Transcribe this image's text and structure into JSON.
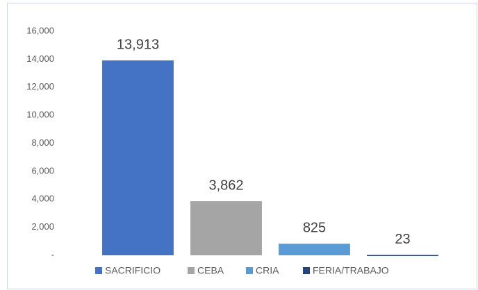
{
  "chart_data": {
    "type": "bar",
    "categories": [
      "SACRIFICIO",
      "CEBA",
      "CRIA",
      "FERIA/TRABAJO"
    ],
    "values": [
      13913,
      3862,
      825,
      23
    ],
    "value_labels": [
      "13,913",
      "3,862",
      "825",
      "23"
    ],
    "colors": [
      "#4472c4",
      "#a5a5a5",
      "#5b9bd5",
      "#264478"
    ],
    "ylim": [
      0,
      16000
    ],
    "yticks": [
      {
        "value": 0,
        "label": "-"
      },
      {
        "value": 2000,
        "label": "2,000"
      },
      {
        "value": 4000,
        "label": "4,000"
      },
      {
        "value": 6000,
        "label": "6,000"
      },
      {
        "value": 8000,
        "label": "8,000"
      },
      {
        "value": 10000,
        "label": "10,000"
      },
      {
        "value": 12000,
        "label": "12,000"
      },
      {
        "value": 14000,
        "label": "14,000"
      },
      {
        "value": 16000,
        "label": "16,000"
      }
    ],
    "grid": false,
    "legend": "bottom"
  }
}
